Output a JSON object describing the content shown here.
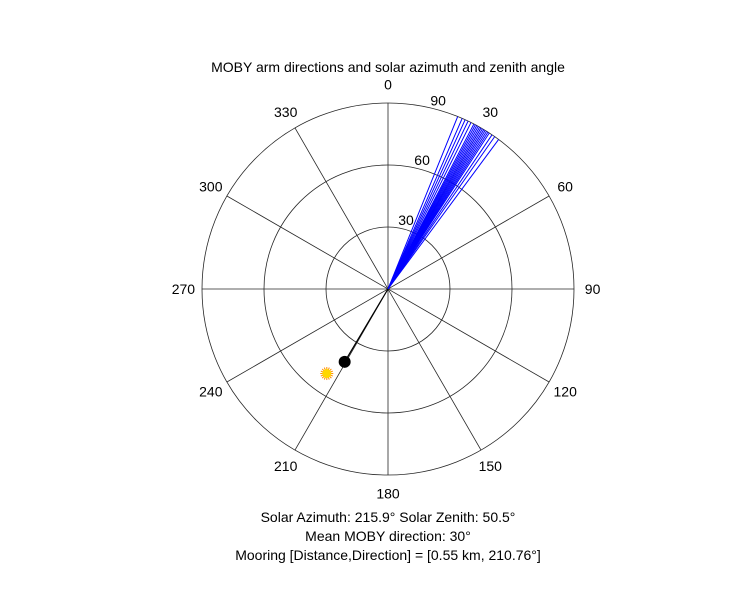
{
  "chart_data": {
    "type": "polar",
    "title": "MOBY arm directions and solar azimuth and zenith angle",
    "angular_axis": {
      "direction": "clockwise",
      "zero_at": "top",
      "ticks": [
        0,
        30,
        60,
        90,
        120,
        150,
        180,
        210,
        240,
        270,
        300,
        330
      ],
      "tick_labels": [
        "0",
        "30",
        "60",
        "90",
        "120",
        "150",
        "180",
        "210",
        "240",
        "270",
        "300",
        "330"
      ]
    },
    "radial_axis": {
      "range": [
        0,
        90
      ],
      "ticks": [
        30,
        60,
        90
      ],
      "tick_labels": [
        "30",
        "60",
        "90"
      ],
      "tick_label_angle": 15
    },
    "grid": true,
    "series": [
      {
        "kind": "radial_lines",
        "color": "#0000ff",
        "r": 90,
        "angles": [
          22,
          23.5,
          24.5,
          25.5,
          26.5,
          27.5,
          28,
          28.5,
          29,
          29.5,
          30,
          30.5,
          31,
          31.5,
          32,
          32.5,
          33,
          34,
          35,
          36.5
        ]
      },
      {
        "kind": "segment",
        "color": "#000000",
        "from": {
          "theta": 0,
          "r": 0
        },
        "to": {
          "theta": 210.76,
          "r": 41
        }
      },
      {
        "kind": "marker",
        "marker": "circle",
        "color": "#000000",
        "theta": 210.76,
        "r": 41
      },
      {
        "kind": "marker",
        "marker": "sun",
        "color": "#ffd700",
        "ray_color": "#ff8c00",
        "theta": 215.9,
        "r": 50.5
      }
    ],
    "annotations": [
      "Solar Azimuth: 215.9°   Solar Zenith: 50.5°",
      "Mean MOBY direction: 30°",
      "Mooring [Distance,Direction] = [0.55 km, 210.76°]"
    ]
  }
}
